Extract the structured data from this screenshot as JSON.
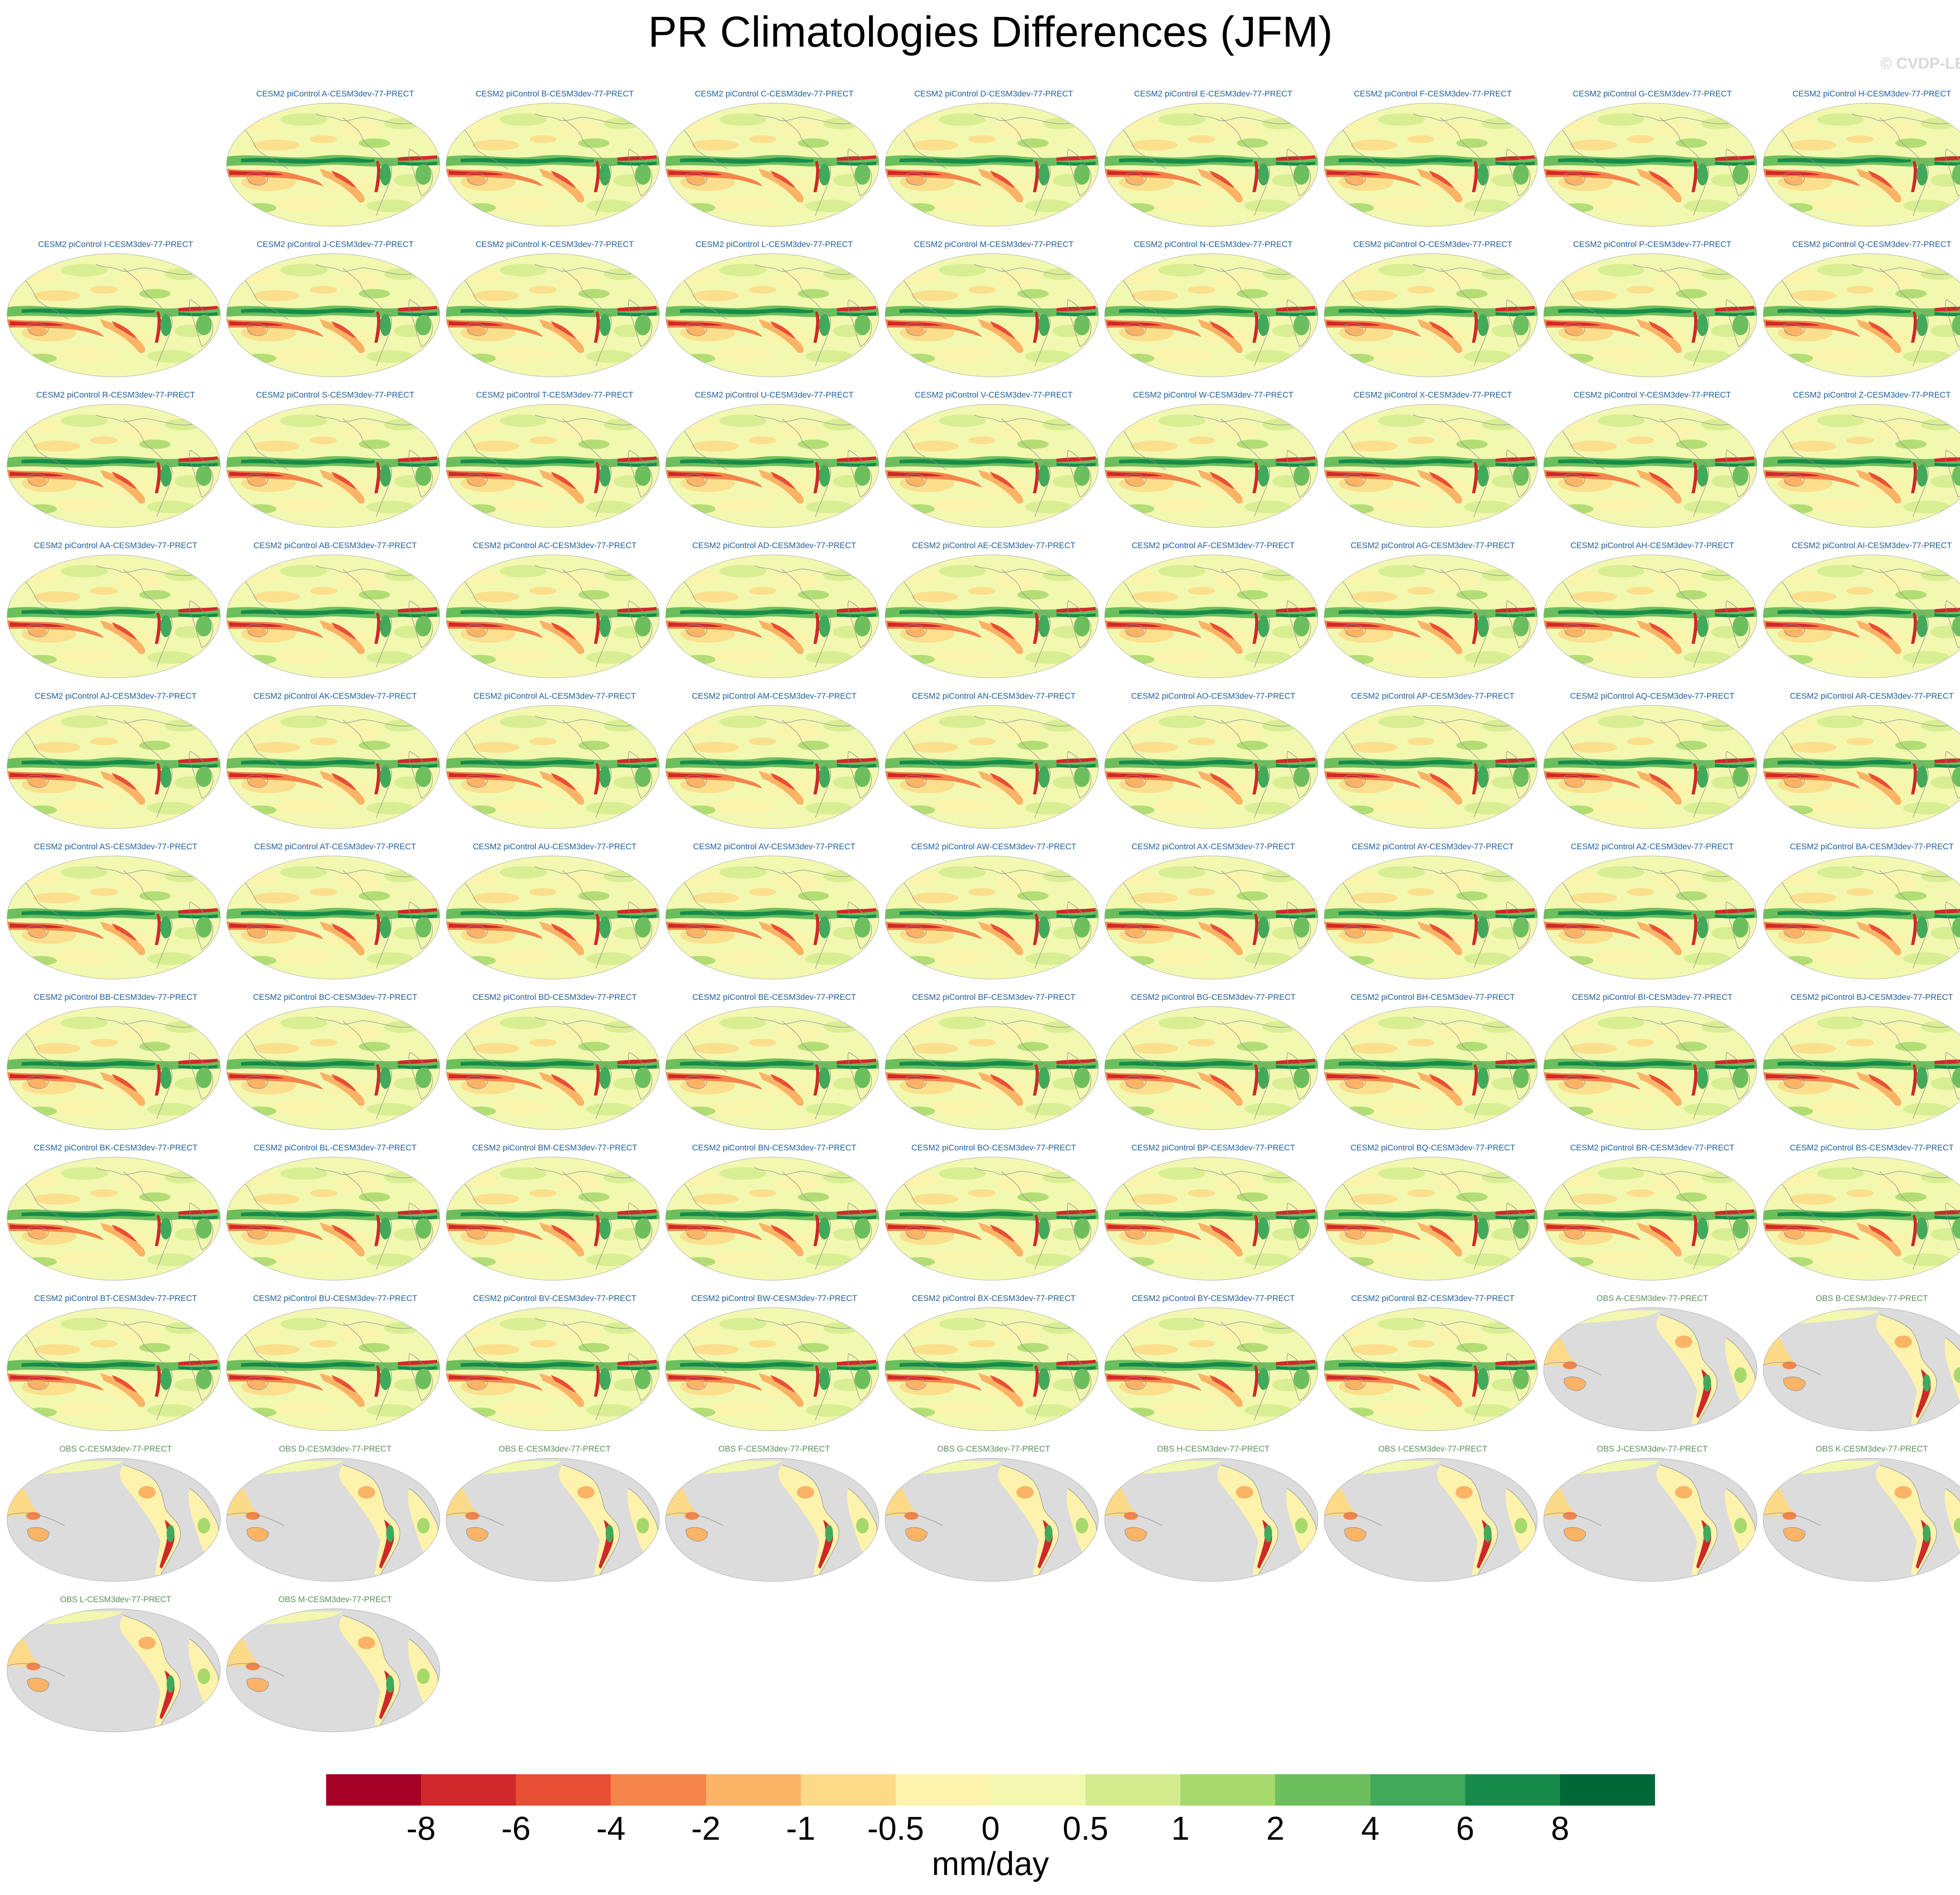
{
  "title": "PR Climatologies Differences (JFM)",
  "watermark": "© CVDP-LE",
  "colors": {
    "model_title": "#1f5f9f",
    "obs_title": "#5b8f5b",
    "land_gray": "#dcdcdc",
    "coast": "#8f8f8f"
  },
  "panels": [
    {
      "label": "CESM2 piControl A-CESM3dev-77-PRECT",
      "kind": "model"
    },
    {
      "label": "CESM2 piControl B-CESM3dev-77-PRECT",
      "kind": "model"
    },
    {
      "label": "CESM2 piControl C-CESM3dev-77-PRECT",
      "kind": "model"
    },
    {
      "label": "CESM2 piControl D-CESM3dev-77-PRECT",
      "kind": "model"
    },
    {
      "label": "CESM2 piControl E-CESM3dev-77-PRECT",
      "kind": "model"
    },
    {
      "label": "CESM2 piControl F-CESM3dev-77-PRECT",
      "kind": "model"
    },
    {
      "label": "CESM2 piControl G-CESM3dev-77-PRECT",
      "kind": "model"
    },
    {
      "label": "CESM2 piControl H-CESM3dev-77-PRECT",
      "kind": "model"
    },
    {
      "label": "CESM2 piControl I-CESM3dev-77-PRECT",
      "kind": "model"
    },
    {
      "label": "CESM2 piControl J-CESM3dev-77-PRECT",
      "kind": "model"
    },
    {
      "label": "CESM2 piControl K-CESM3dev-77-PRECT",
      "kind": "model"
    },
    {
      "label": "CESM2 piControl L-CESM3dev-77-PRECT",
      "kind": "model"
    },
    {
      "label": "CESM2 piControl M-CESM3dev-77-PRECT",
      "kind": "model"
    },
    {
      "label": "CESM2 piControl N-CESM3dev-77-PRECT",
      "kind": "model"
    },
    {
      "label": "CESM2 piControl O-CESM3dev-77-PRECT",
      "kind": "model"
    },
    {
      "label": "CESM2 piControl P-CESM3dev-77-PRECT",
      "kind": "model"
    },
    {
      "label": "CESM2 piControl Q-CESM3dev-77-PRECT",
      "kind": "model"
    },
    {
      "label": "CESM2 piControl R-CESM3dev-77-PRECT",
      "kind": "model"
    },
    {
      "label": "CESM2 piControl S-CESM3dev-77-PRECT",
      "kind": "model"
    },
    {
      "label": "CESM2 piControl T-CESM3dev-77-PRECT",
      "kind": "model"
    },
    {
      "label": "CESM2 piControl U-CESM3dev-77-PRECT",
      "kind": "model"
    },
    {
      "label": "CESM2 piControl V-CESM3dev-77-PRECT",
      "kind": "model"
    },
    {
      "label": "CESM2 piControl W-CESM3dev-77-PRECT",
      "kind": "model"
    },
    {
      "label": "CESM2 piControl X-CESM3dev-77-PRECT",
      "kind": "model"
    },
    {
      "label": "CESM2 piControl Y-CESM3dev-77-PRECT",
      "kind": "model"
    },
    {
      "label": "CESM2 piControl Z-CESM3dev-77-PRECT",
      "kind": "model"
    },
    {
      "label": "CESM2 piControl AA-CESM3dev-77-PRECT",
      "kind": "model"
    },
    {
      "label": "CESM2 piControl AB-CESM3dev-77-PRECT",
      "kind": "model"
    },
    {
      "label": "CESM2 piControl AC-CESM3dev-77-PRECT",
      "kind": "model"
    },
    {
      "label": "CESM2 piControl AD-CESM3dev-77-PRECT",
      "kind": "model"
    },
    {
      "label": "CESM2 piControl AE-CESM3dev-77-PRECT",
      "kind": "model"
    },
    {
      "label": "CESM2 piControl AF-CESM3dev-77-PRECT",
      "kind": "model"
    },
    {
      "label": "CESM2 piControl AG-CESM3dev-77-PRECT",
      "kind": "model"
    },
    {
      "label": "CESM2 piControl AH-CESM3dev-77-PRECT",
      "kind": "model"
    },
    {
      "label": "CESM2 piControl AI-CESM3dev-77-PRECT",
      "kind": "model"
    },
    {
      "label": "CESM2 piControl AJ-CESM3dev-77-PRECT",
      "kind": "model"
    },
    {
      "label": "CESM2 piControl AK-CESM3dev-77-PRECT",
      "kind": "model"
    },
    {
      "label": "CESM2 piControl AL-CESM3dev-77-PRECT",
      "kind": "model"
    },
    {
      "label": "CESM2 piControl AM-CESM3dev-77-PRECT",
      "kind": "model"
    },
    {
      "label": "CESM2 piControl AN-CESM3dev-77-PRECT",
      "kind": "model"
    },
    {
      "label": "CESM2 piControl AO-CESM3dev-77-PRECT",
      "kind": "model"
    },
    {
      "label": "CESM2 piControl AP-CESM3dev-77-PRECT",
      "kind": "model"
    },
    {
      "label": "CESM2 piControl AQ-CESM3dev-77-PRECT",
      "kind": "model"
    },
    {
      "label": "CESM2 piControl AR-CESM3dev-77-PRECT",
      "kind": "model"
    },
    {
      "label": "CESM2 piControl AS-CESM3dev-77-PRECT",
      "kind": "model"
    },
    {
      "label": "CESM2 piControl AT-CESM3dev-77-PRECT",
      "kind": "model"
    },
    {
      "label": "CESM2 piControl AU-CESM3dev-77-PRECT",
      "kind": "model"
    },
    {
      "label": "CESM2 piControl AV-CESM3dev-77-PRECT",
      "kind": "model"
    },
    {
      "label": "CESM2 piControl AW-CESM3dev-77-PRECT",
      "kind": "model"
    },
    {
      "label": "CESM2 piControl AX-CESM3dev-77-PRECT",
      "kind": "model"
    },
    {
      "label": "CESM2 piControl AY-CESM3dev-77-PRECT",
      "kind": "model"
    },
    {
      "label": "CESM2 piControl AZ-CESM3dev-77-PRECT",
      "kind": "model"
    },
    {
      "label": "CESM2 piControl BA-CESM3dev-77-PRECT",
      "kind": "model"
    },
    {
      "label": "CESM2 piControl BB-CESM3dev-77-PRECT",
      "kind": "model"
    },
    {
      "label": "CESM2 piControl BC-CESM3dev-77-PRECT",
      "kind": "model"
    },
    {
      "label": "CESM2 piControl BD-CESM3dev-77-PRECT",
      "kind": "model"
    },
    {
      "label": "CESM2 piControl BE-CESM3dev-77-PRECT",
      "kind": "model"
    },
    {
      "label": "CESM2 piControl BF-CESM3dev-77-PRECT",
      "kind": "model"
    },
    {
      "label": "CESM2 piControl BG-CESM3dev-77-PRECT",
      "kind": "model"
    },
    {
      "label": "CESM2 piControl BH-CESM3dev-77-PRECT",
      "kind": "model"
    },
    {
      "label": "CESM2 piControl BI-CESM3dev-77-PRECT",
      "kind": "model"
    },
    {
      "label": "CESM2 piControl BJ-CESM3dev-77-PRECT",
      "kind": "model"
    },
    {
      "label": "CESM2 piControl BK-CESM3dev-77-PRECT",
      "kind": "model"
    },
    {
      "label": "CESM2 piControl BL-CESM3dev-77-PRECT",
      "kind": "model"
    },
    {
      "label": "CESM2 piControl BM-CESM3dev-77-PRECT",
      "kind": "model"
    },
    {
      "label": "CESM2 piControl BN-CESM3dev-77-PRECT",
      "kind": "model"
    },
    {
      "label": "CESM2 piControl BO-CESM3dev-77-PRECT",
      "kind": "model"
    },
    {
      "label": "CESM2 piControl BP-CESM3dev-77-PRECT",
      "kind": "model"
    },
    {
      "label": "CESM2 piControl BQ-CESM3dev-77-PRECT",
      "kind": "model"
    },
    {
      "label": "CESM2 piControl BR-CESM3dev-77-PRECT",
      "kind": "model"
    },
    {
      "label": "CESM2 piControl BS-CESM3dev-77-PRECT",
      "kind": "model"
    },
    {
      "label": "CESM2 piControl BT-CESM3dev-77-PRECT",
      "kind": "model"
    },
    {
      "label": "CESM2 piControl BU-CESM3dev-77-PRECT",
      "kind": "model"
    },
    {
      "label": "CESM2 piControl BV-CESM3dev-77-PRECT",
      "kind": "model"
    },
    {
      "label": "CESM2 piControl BW-CESM3dev-77-PRECT",
      "kind": "model"
    },
    {
      "label": "CESM2 piControl BX-CESM3dev-77-PRECT",
      "kind": "model"
    },
    {
      "label": "CESM2 piControl BY-CESM3dev-77-PRECT",
      "kind": "model"
    },
    {
      "label": "CESM2 piControl BZ-CESM3dev-77-PRECT",
      "kind": "model"
    },
    {
      "label": "OBS A-CESM3dev-77-PRECT",
      "kind": "obs"
    },
    {
      "label": "OBS B-CESM3dev-77-PRECT",
      "kind": "obs"
    },
    {
      "label": "OBS C-CESM3dev-77-PRECT",
      "kind": "obs"
    },
    {
      "label": "OBS D-CESM3dev-77-PRECT",
      "kind": "obs"
    },
    {
      "label": "OBS E-CESM3dev-77-PRECT",
      "kind": "obs"
    },
    {
      "label": "OBS F-CESM3dev-77-PRECT",
      "kind": "obs"
    },
    {
      "label": "OBS G-CESM3dev-77-PRECT",
      "kind": "obs"
    },
    {
      "label": "OBS H-CESM3dev-77-PRECT",
      "kind": "obs"
    },
    {
      "label": "OBS I-CESM3dev-77-PRECT",
      "kind": "obs"
    },
    {
      "label": "OBS J-CESM3dev-77-PRECT",
      "kind": "obs"
    },
    {
      "label": "OBS K-CESM3dev-77-PRECT",
      "kind": "obs"
    },
    {
      "label": "OBS L-CESM3dev-77-PRECT",
      "kind": "obs"
    },
    {
      "label": "OBS M-CESM3dev-77-PRECT",
      "kind": "obs"
    }
  ],
  "colorbar": {
    "colors": [
      "#a50026",
      "#d0282a",
      "#e84f35",
      "#f5844b",
      "#fbb366",
      "#fdda87",
      "#fdf3ad",
      "#f2f8b0",
      "#d3ec8e",
      "#a7d86b",
      "#6dbe5c",
      "#41a95a",
      "#178c4a",
      "#006837"
    ],
    "ticks": [
      "-8",
      "-6",
      "-4",
      "-2",
      "-1",
      "-0.5",
      "0",
      "0.5",
      "1",
      "2",
      "4",
      "6",
      "8"
    ],
    "units": "mm/day"
  }
}
